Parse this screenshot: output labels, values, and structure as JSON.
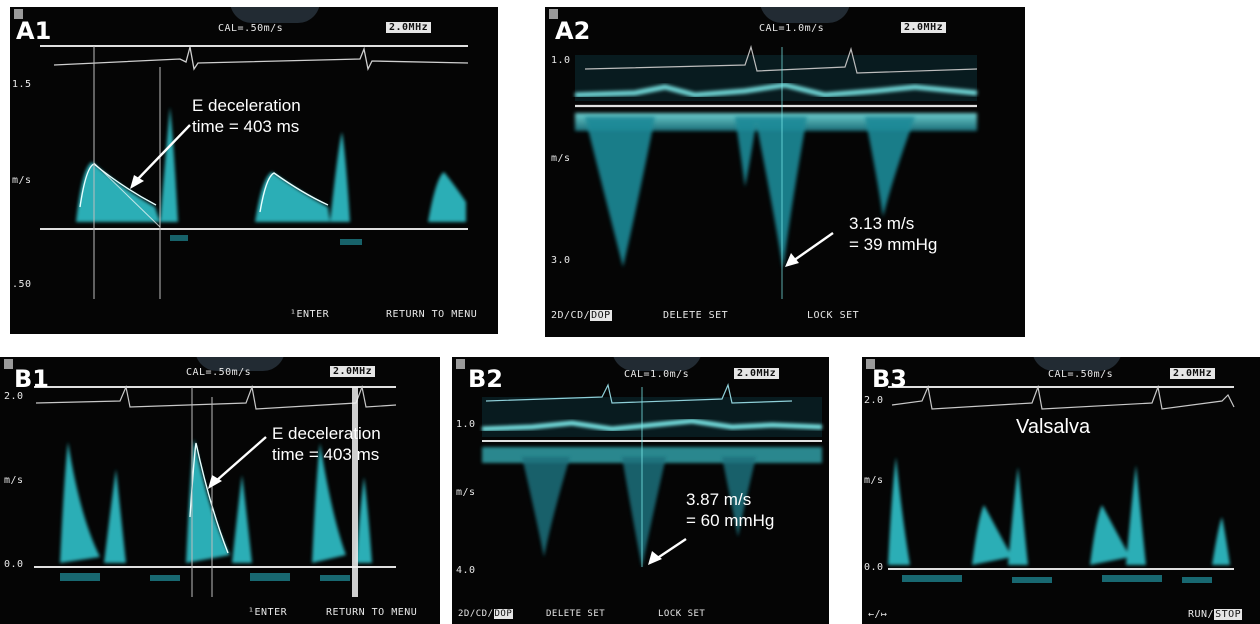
{
  "colors": {
    "doppler": "#3fd6d6",
    "background": "#050505",
    "baseline": "#e0e0e0"
  },
  "panels": {
    "a1": {
      "label": "A1",
      "cal": "CAL=.50m/s",
      "freq": "2.0MHz",
      "scale": [
        "1.5",
        "m/s",
        ".50"
      ],
      "annotation": [
        "E deceleration",
        "time = 403 ms"
      ],
      "footer": [
        "¹ENTER",
        "RETURN TO MENU"
      ]
    },
    "a2": {
      "label": "A2",
      "cal": "CAL=1.0m/s",
      "freq": "2.0MHz",
      "scale": [
        "1.0",
        "m/s",
        "3.0"
      ],
      "annotation": [
        "3.13 m/s",
        "= 39 mmHg"
      ],
      "footer": [
        "2D/CD/",
        "DOP",
        "DELETE SET",
        "LOCK SET"
      ]
    },
    "b1": {
      "label": "B1",
      "cal": "CAL=.50m/s",
      "freq": "2.0MHz",
      "scale": [
        "2.0",
        "m/s",
        "0.0"
      ],
      "annotation": [
        "E deceleration",
        "time = 403 ms"
      ],
      "footer": [
        "¹ENTER",
        "RETURN TO MENU"
      ]
    },
    "b2": {
      "label": "B2",
      "cal": "CAL=1.0m/s",
      "freq": "2.0MHz",
      "scale": [
        "1.0",
        "m/s",
        "4.0"
      ],
      "annotation": [
        "3.87 m/s",
        "= 60 mmHg"
      ],
      "footer": [
        "2D/CD/",
        "DOP",
        "DELETE SET",
        "LOCK SET"
      ]
    },
    "b3": {
      "label": "B3",
      "cal": "CAL=.50m/s",
      "freq": "2.0MHz",
      "scale": [
        "2.0",
        "m/s",
        "0.0"
      ],
      "annotation": [
        "Valsalva"
      ],
      "footer": [
        "←/↦",
        "RUN/",
        "STOP"
      ]
    }
  }
}
